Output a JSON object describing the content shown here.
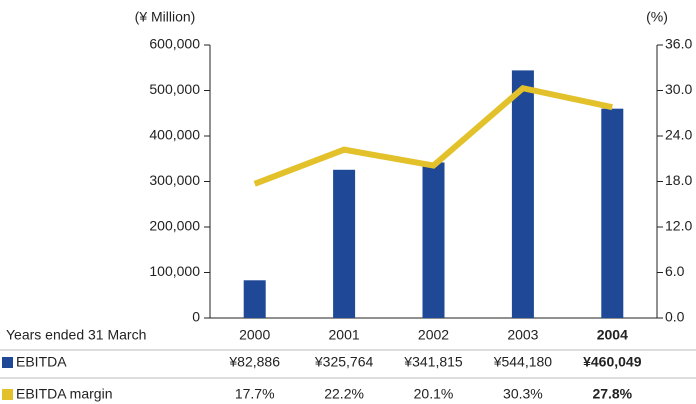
{
  "chart_data": {
    "type": "bar",
    "y_label": "(¥ Million)",
    "y2_label": "(%)",
    "table_header": "Years ended 31 March",
    "categories": [
      "2000",
      "2001",
      "2002",
      "2003",
      "2004"
    ],
    "series": [
      {
        "name": "EBITDA",
        "color": "#1f4896",
        "values": [
          82886,
          325764,
          341815,
          544180,
          460049
        ],
        "value_labels": [
          "¥82,886",
          "¥325,764",
          "¥341,815",
          "¥544,180",
          "¥460,049"
        ]
      },
      {
        "name": "EBITDA margin",
        "type": "line",
        "axis": "y2",
        "color": "#e3c12a",
        "values": [
          17.7,
          22.2,
          20.1,
          30.3,
          27.8
        ],
        "value_labels": [
          "17.7%",
          "22.2%",
          "20.1%",
          "30.3%",
          "27.8%"
        ]
      }
    ],
    "ylim": [
      0,
      600000
    ],
    "yticks": [
      0,
      {
        "value": 100000,
        "label": "100,000"
      },
      {
        "value": 200000,
        "label": "200,000"
      },
      {
        "value": 300000,
        "label": "300,000"
      },
      {
        "value": 400000,
        "label": "400,000"
      },
      {
        "value": 500000,
        "label": "500,000"
      },
      {
        "value": 600000,
        "label": "600,000"
      }
    ],
    "y2lim": [
      0,
      36
    ],
    "y2ticks": [
      {
        "value": 0,
        "label": "0.0"
      },
      {
        "value": 6,
        "label": "6.0"
      },
      {
        "value": 12,
        "label": "12.0"
      },
      {
        "value": 18,
        "label": "18.0"
      },
      {
        "value": 24,
        "label": "24.0"
      },
      {
        "value": 30,
        "label": "30.0"
      },
      {
        "value": 36,
        "label": "36.0"
      }
    ]
  }
}
